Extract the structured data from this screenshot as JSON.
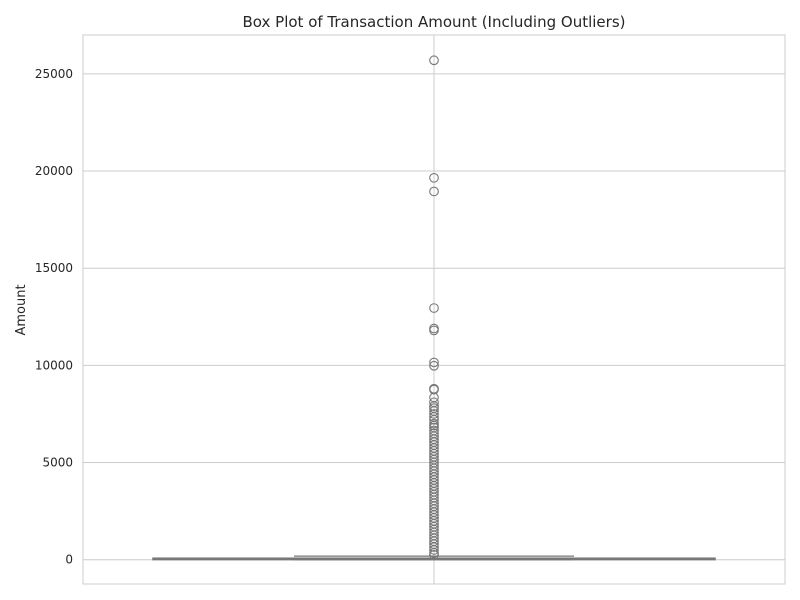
{
  "chart_data": {
    "type": "box",
    "title": "Box Plot of Transaction Amount (Including Outliers)",
    "xlabel": "",
    "ylabel": "Amount",
    "ylim": [
      -1250,
      27000
    ],
    "yticks": [
      0,
      5000,
      10000,
      15000,
      20000,
      25000
    ],
    "ytick_labels": [
      "0",
      "5000",
      "10000",
      "15000",
      "20000",
      "25000"
    ],
    "grid": true,
    "box": {
      "whisker_low": 0,
      "q1": 5,
      "median": 22,
      "q3": 77,
      "whisker_high": 185
    },
    "outliers": [
      25700,
      19650,
      18950,
      12950,
      11900,
      11800,
      10150,
      9980,
      8800,
      8750,
      8350,
      8100,
      7900,
      7800,
      7650,
      7500,
      7350,
      7200,
      7000,
      6900,
      6800,
      6650,
      6500,
      6350,
      6200,
      6050,
      5900,
      5750,
      5600,
      5450,
      5300,
      5150,
      5000,
      4850,
      4700,
      4550,
      4400,
      4250,
      4100,
      3950,
      3800,
      3650,
      3500,
      3350,
      3200,
      3050,
      2900,
      2750,
      2600,
      2450,
      2300,
      2150,
      2000,
      1850,
      1700,
      1550,
      1400,
      1250,
      1100,
      950,
      800,
      650,
      500,
      350,
      250
    ],
    "colors": {
      "box_edge": "#777777",
      "grid": "#cccccc",
      "frame": "#cccccc",
      "marker": "#777777"
    }
  }
}
